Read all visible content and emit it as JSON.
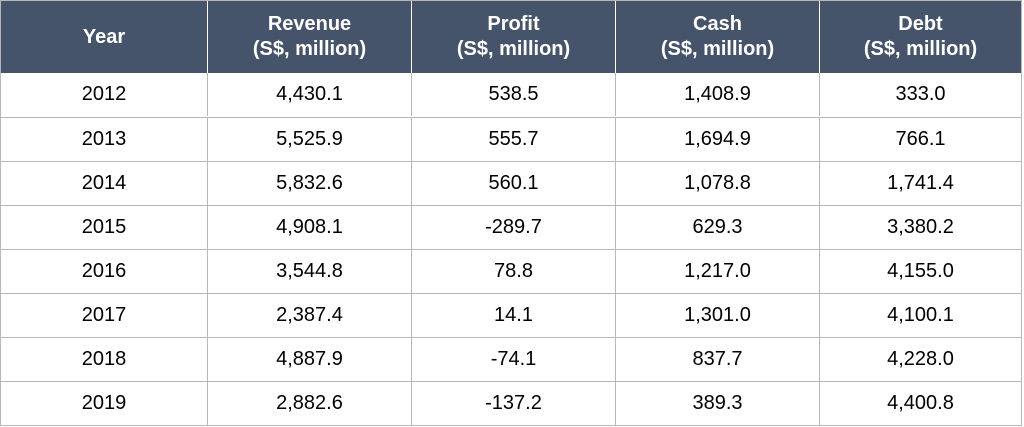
{
  "chart_data": {
    "type": "table",
    "columns": [
      {
        "label": "Year",
        "unit": ""
      },
      {
        "label": "Revenue",
        "unit": "(S$, million)"
      },
      {
        "label": "Profit",
        "unit": "(S$, million)"
      },
      {
        "label": "Cash",
        "unit": "(S$, million)"
      },
      {
        "label": "Debt",
        "unit": "(S$, million)"
      }
    ],
    "rows": [
      [
        "2012",
        "4,430.1",
        "538.5",
        "1,408.9",
        "333.0"
      ],
      [
        "2013",
        "5,525.9",
        "555.7",
        "1,694.9",
        "766.1"
      ],
      [
        "2014",
        "5,832.6",
        "560.1",
        "1,078.8",
        "1,741.4"
      ],
      [
        "2015",
        "4,908.1",
        "-289.7",
        "629.3",
        "3,380.2"
      ],
      [
        "2016",
        "3,544.8",
        "78.8",
        "1,217.0",
        "4,155.0"
      ],
      [
        "2017",
        "2,387.4",
        "14.1",
        "1,301.0",
        "4,100.1"
      ],
      [
        "2018",
        "4,887.9",
        "-74.1",
        "837.7",
        "4,228.0"
      ],
      [
        "2019",
        "2,882.6",
        "-137.2",
        "389.3",
        "4,400.8"
      ]
    ]
  },
  "colors": {
    "header_background": "#45536b",
    "header_text": "#ffffff",
    "grid_lines": "#b7b7b7",
    "body_text": "#000000"
  }
}
